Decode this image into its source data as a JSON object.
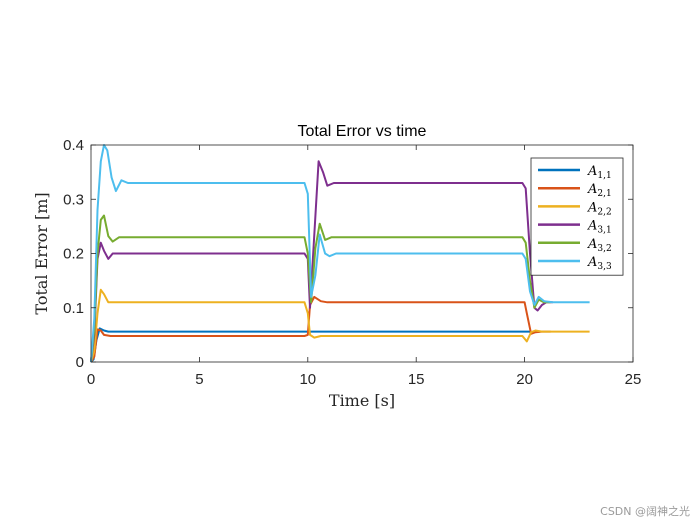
{
  "chart_data": {
    "type": "line",
    "title": "Total Error vs time",
    "xlabel": "Time [s]",
    "ylabel": "Total Error [m]",
    "xlim": [
      0,
      25
    ],
    "ylim": [
      0,
      0.4
    ],
    "xticks": [
      0,
      5,
      10,
      15,
      20,
      25
    ],
    "yticks": [
      0,
      0.1,
      0.2,
      0.3,
      0.4
    ],
    "xtick_labels": [
      "0",
      "5",
      "10",
      "15",
      "20",
      "25"
    ],
    "ytick_labels": [
      "0",
      "0.1",
      "0.2",
      "0.3",
      "0.4"
    ],
    "grid": false,
    "legend_position": "top-right",
    "series": [
      {
        "name": "A",
        "sub": "1,1",
        "color": "#0072BD",
        "x": [
          0,
          0.12,
          0.25,
          0.4,
          0.6,
          0.8,
          1.2,
          9.9,
          10.1,
          20.2,
          20.4,
          20.7
        ],
        "y": [
          0,
          0.005,
          0.04,
          0.062,
          0.058,
          0.056,
          0.056,
          0.056,
          0.056,
          0.056,
          0.055,
          0.056
        ]
      },
      {
        "name": "A",
        "sub": "2,1",
        "color": "#D95319",
        "x": [
          0,
          0.15,
          0.3,
          0.45,
          0.6,
          0.9,
          9.85,
          10.0,
          10.1,
          10.3,
          10.6,
          10.9,
          20.0,
          20.1,
          20.3,
          20.5,
          20.8,
          21.2
        ],
        "y": [
          0,
          0.01,
          0.06,
          0.058,
          0.05,
          0.048,
          0.048,
          0.05,
          0.105,
          0.12,
          0.112,
          0.11,
          0.11,
          0.09,
          0.052,
          0.055,
          0.056,
          0.056
        ]
      },
      {
        "name": "A",
        "sub": "2,2",
        "color": "#EDB120",
        "x": [
          0,
          0.15,
          0.3,
          0.45,
          0.6,
          0.8,
          1.0,
          9.85,
          10.0,
          10.1,
          10.3,
          10.6,
          10.9,
          19.9,
          20.1,
          20.3,
          20.5,
          20.8,
          23.0
        ],
        "y": [
          0,
          0.02,
          0.09,
          0.133,
          0.125,
          0.11,
          0.11,
          0.11,
          0.09,
          0.05,
          0.045,
          0.048,
          0.048,
          0.048,
          0.038,
          0.055,
          0.058,
          0.056,
          0.056
        ]
      },
      {
        "name": "A",
        "sub": "3,1",
        "color": "#7E2F8E",
        "x": [
          0,
          0.15,
          0.3,
          0.45,
          0.6,
          0.8,
          1.0,
          9.85,
          10.0,
          10.1,
          10.25,
          10.5,
          10.7,
          10.9,
          11.2,
          19.9,
          20.05,
          20.25,
          20.45,
          20.6,
          20.8,
          21.0,
          21.3
        ],
        "y": [
          0,
          0.05,
          0.19,
          0.22,
          0.205,
          0.19,
          0.2,
          0.2,
          0.19,
          0.1,
          0.2,
          0.37,
          0.35,
          0.325,
          0.33,
          0.33,
          0.32,
          0.2,
          0.1,
          0.095,
          0.105,
          0.11,
          0.11
        ]
      },
      {
        "name": "A",
        "sub": "3,2",
        "color": "#77AC30",
        "x": [
          0,
          0.15,
          0.3,
          0.45,
          0.6,
          0.8,
          1.0,
          1.3,
          9.85,
          10.0,
          10.15,
          10.35,
          10.55,
          10.8,
          11.1,
          19.9,
          20.05,
          20.25,
          20.45,
          20.65,
          20.9,
          21.2
        ],
        "y": [
          0,
          0.06,
          0.2,
          0.262,
          0.27,
          0.232,
          0.222,
          0.23,
          0.23,
          0.2,
          0.11,
          0.21,
          0.255,
          0.225,
          0.23,
          0.23,
          0.22,
          0.15,
          0.1,
          0.115,
          0.11,
          0.11
        ]
      },
      {
        "name": "A",
        "sub": "3,3",
        "color": "#4DBEEE",
        "x": [
          0,
          0.15,
          0.3,
          0.45,
          0.6,
          0.75,
          0.95,
          1.15,
          1.4,
          1.7,
          9.85,
          10.0,
          10.15,
          10.35,
          10.55,
          10.8,
          11.0,
          11.3,
          19.9,
          20.05,
          20.25,
          20.45,
          20.65,
          20.9,
          21.3,
          23.0
        ],
        "y": [
          0,
          0.08,
          0.28,
          0.37,
          0.4,
          0.39,
          0.34,
          0.315,
          0.335,
          0.33,
          0.33,
          0.31,
          0.12,
          0.16,
          0.235,
          0.2,
          0.195,
          0.2,
          0.2,
          0.19,
          0.13,
          0.105,
          0.12,
          0.112,
          0.11,
          0.11
        ]
      }
    ]
  }
}
